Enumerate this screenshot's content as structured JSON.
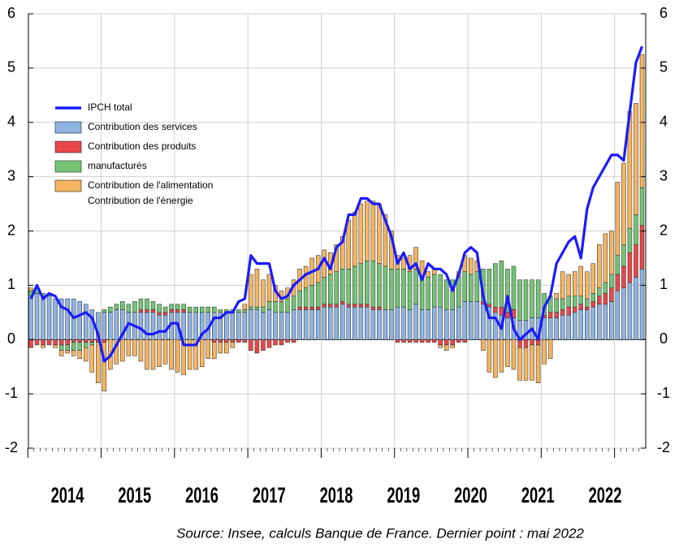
{
  "chart_data": {
    "type": "bar",
    "stacked": true,
    "source": "Source: Insee, calculs Banque de France. Dernier point : mai 2022",
    "legend_extra": "Contribution de l'énergie",
    "categories": [
      "2014",
      null,
      null,
      null,
      null,
      null,
      null,
      null,
      null,
      null,
      null,
      null,
      "2015",
      null,
      null,
      null,
      null,
      null,
      null,
      null,
      null,
      null,
      null,
      null,
      "2016",
      null,
      null,
      null,
      null,
      null,
      null,
      null,
      null,
      null,
      null,
      null,
      "2017",
      null,
      null,
      null,
      null,
      null,
      null,
      null,
      null,
      null,
      null,
      null,
      "2018",
      null,
      null,
      null,
      null,
      null,
      null,
      null,
      null,
      null,
      null,
      null,
      "2019",
      null,
      null,
      null,
      null,
      null,
      null,
      null,
      null,
      null,
      null,
      null,
      "2020",
      null,
      null,
      null,
      null,
      null,
      null,
      null,
      null,
      null,
      null,
      null,
      "2021",
      null,
      null,
      null,
      null,
      null,
      null,
      null,
      null,
      null,
      null,
      null,
      "2022",
      null,
      null,
      null,
      null
    ],
    "ylim": [
      -2,
      6
    ],
    "yticks": [
      -2,
      -1,
      0,
      1,
      2,
      3,
      4,
      5,
      6
    ],
    "grid": true,
    "series": [
      {
        "name": "IPCH total",
        "type": "line",
        "color": "#1a1aff",
        "values": [
          0.75,
          1.0,
          0.75,
          0.85,
          0.8,
          0.6,
          0.55,
          0.4,
          0.45,
          0.5,
          0.4,
          0.1,
          -0.4,
          -0.3,
          -0.1,
          0.1,
          0.3,
          0.25,
          0.2,
          0.1,
          0.1,
          0.15,
          0.15,
          0.3,
          0.3,
          -0.1,
          -0.1,
          -0.1,
          0.1,
          0.2,
          0.4,
          0.4,
          0.5,
          0.5,
          0.7,
          0.75,
          1.55,
          1.4,
          1.4,
          1.4,
          0.9,
          0.75,
          0.8,
          1.0,
          1.1,
          1.2,
          1.25,
          1.3,
          1.5,
          1.3,
          1.7,
          1.8,
          2.3,
          2.3,
          2.6,
          2.6,
          2.5,
          2.5,
          2.2,
          1.9,
          1.4,
          1.6,
          1.3,
          1.4,
          1.1,
          1.4,
          1.3,
          1.3,
          1.2,
          0.9,
          1.2,
          1.6,
          1.7,
          1.6,
          0.8,
          0.4,
          0.4,
          0.2,
          0.8,
          0.2,
          0.0,
          0.1,
          0.2,
          0.0,
          0.6,
          0.8,
          1.4,
          1.6,
          1.8,
          1.9,
          1.5,
          2.4,
          2.8,
          3.0,
          3.2,
          3.4,
          3.4,
          3.3,
          4.2,
          5.1,
          5.4
        ]
      },
      {
        "name": "Contribution des services",
        "color": "#8db4e2",
        "values": [
          0.8,
          0.85,
          0.8,
          0.8,
          0.75,
          0.75,
          0.75,
          0.75,
          0.7,
          0.65,
          0.55,
          0.5,
          0.5,
          0.5,
          0.55,
          0.55,
          0.5,
          0.5,
          0.5,
          0.5,
          0.5,
          0.45,
          0.45,
          0.5,
          0.5,
          0.5,
          0.5,
          0.5,
          0.5,
          0.5,
          0.5,
          0.5,
          0.5,
          0.5,
          0.5,
          0.5,
          0.55,
          0.55,
          0.5,
          0.55,
          0.5,
          0.5,
          0.5,
          0.55,
          0.55,
          0.55,
          0.55,
          0.55,
          0.6,
          0.6,
          0.6,
          0.65,
          0.6,
          0.6,
          0.6,
          0.6,
          0.55,
          0.55,
          0.55,
          0.55,
          0.6,
          0.6,
          0.55,
          0.65,
          0.55,
          0.55,
          0.6,
          0.6,
          0.55,
          0.55,
          0.6,
          0.7,
          0.7,
          0.7,
          0.65,
          0.6,
          0.5,
          0.45,
          0.4,
          0.4,
          0.35,
          0.35,
          0.4,
          0.4,
          0.4,
          0.4,
          0.4,
          0.45,
          0.45,
          0.5,
          0.55,
          0.55,
          0.6,
          0.65,
          0.65,
          0.7,
          0.9,
          0.95,
          1.05,
          1.15,
          1.3
        ]
      },
      {
        "name": "Contribution des produits",
        "color": "#e8484a",
        "values": [
          -0.15,
          -0.1,
          -0.1,
          -0.1,
          -0.1,
          -0.1,
          -0.1,
          -0.05,
          -0.05,
          -0.05,
          -0.05,
          -0.05,
          -0.05,
          0,
          0,
          0,
          0,
          0,
          0.05,
          0.05,
          0.05,
          0.05,
          0.05,
          0.05,
          0.05,
          0.05,
          0,
          0,
          0,
          0,
          -0.05,
          -0.05,
          -0.05,
          -0.05,
          -0.05,
          -0.05,
          -0.2,
          -0.25,
          -0.2,
          -0.15,
          -0.1,
          -0.1,
          -0.05,
          -0.05,
          0.05,
          0.05,
          0.05,
          0.05,
          0.05,
          0.05,
          0.05,
          0.05,
          0.05,
          0.05,
          0.05,
          0.05,
          0.05,
          0.05,
          0,
          0,
          -0.05,
          -0.05,
          -0.05,
          -0.05,
          -0.05,
          -0.05,
          -0.05,
          -0.1,
          -0.1,
          -0.1,
          -0.05,
          -0.05,
          0,
          0,
          0.05,
          0.05,
          0.1,
          0.15,
          0.1,
          0.15,
          -0.15,
          -0.15,
          -0.1,
          -0.1,
          0.05,
          0.1,
          0.1,
          0.1,
          0.15,
          0.1,
          0.1,
          0.05,
          0.1,
          0.15,
          0.2,
          0.25,
          0.3,
          0.4,
          0.55,
          0.6,
          0.8
        ]
      },
      {
        "name": "manufacturés",
        "color": "#74c476",
        "values": [
          0.1,
          0.1,
          0.05,
          0.05,
          0,
          -0.1,
          -0.1,
          -0.15,
          -0.15,
          -0.1,
          -0.05,
          0,
          0.05,
          0.1,
          0.1,
          0.15,
          0.15,
          0.2,
          0.2,
          0.2,
          0.15,
          0.15,
          0.1,
          0.1,
          0.1,
          0.1,
          0.1,
          0.1,
          0.1,
          0.1,
          0.1,
          0.05,
          0.05,
          0.05,
          0.05,
          0.05,
          0.05,
          0.05,
          0.1,
          0.15,
          0.2,
          0.2,
          0.25,
          0.25,
          0.3,
          0.35,
          0.4,
          0.45,
          0.5,
          0.55,
          0.6,
          0.6,
          0.65,
          0.7,
          0.75,
          0.8,
          0.85,
          0.8,
          0.8,
          0.75,
          0.7,
          0.7,
          0.7,
          0.65,
          0.6,
          0.6,
          0.6,
          0.6,
          0.55,
          0.55,
          0.55,
          0.55,
          0.5,
          0.55,
          0.6,
          0.65,
          0.8,
          0.85,
          0.8,
          0.8,
          0.75,
          0.75,
          0.7,
          0.7,
          0.4,
          0.3,
          0.25,
          0.2,
          0.2,
          0.2,
          0.15,
          0.15,
          0.15,
          0.15,
          0.2,
          0.25,
          0.35,
          0.4,
          0.45,
          0.55,
          0.7
        ]
      },
      {
        "name": "Contribution de l'alimentation",
        "color": "#f5b560",
        "values": [
          0.05,
          0,
          -0.05,
          0,
          -0.05,
          -0.1,
          -0.05,
          -0.1,
          -0.15,
          -0.25,
          -0.5,
          -0.75,
          -0.9,
          -0.55,
          -0.45,
          -0.4,
          -0.3,
          -0.3,
          -0.4,
          -0.55,
          -0.55,
          -0.5,
          -0.45,
          -0.55,
          -0.6,
          -0.65,
          -0.55,
          -0.55,
          -0.5,
          -0.35,
          -0.3,
          -0.2,
          -0.2,
          -0.1,
          0,
          0.1,
          0.6,
          0.7,
          0.5,
          0.5,
          0.3,
          0.2,
          0.2,
          0.3,
          0.4,
          0.4,
          0.5,
          0.5,
          0.5,
          0.4,
          0.5,
          0.6,
          0.9,
          1.0,
          1.1,
          1.1,
          1.1,
          1.1,
          0.95,
          0.7,
          0.25,
          0.2,
          0.3,
          0.4,
          0.3,
          0.1,
          0.1,
          -0.05,
          -0.1,
          -0.05,
          0.1,
          0.3,
          0.3,
          0.2,
          -0.2,
          -0.6,
          -0.7,
          -0.6,
          -0.5,
          -0.55,
          -0.6,
          -0.6,
          -0.65,
          -0.7,
          -0.45,
          -0.35,
          0.1,
          0.5,
          0.4,
          0.45,
          0.55,
          0.5,
          0.55,
          0.8,
          0.9,
          0.8,
          1.35,
          1.5,
          2.15,
          2.05,
          2.45
        ]
      }
    ]
  }
}
